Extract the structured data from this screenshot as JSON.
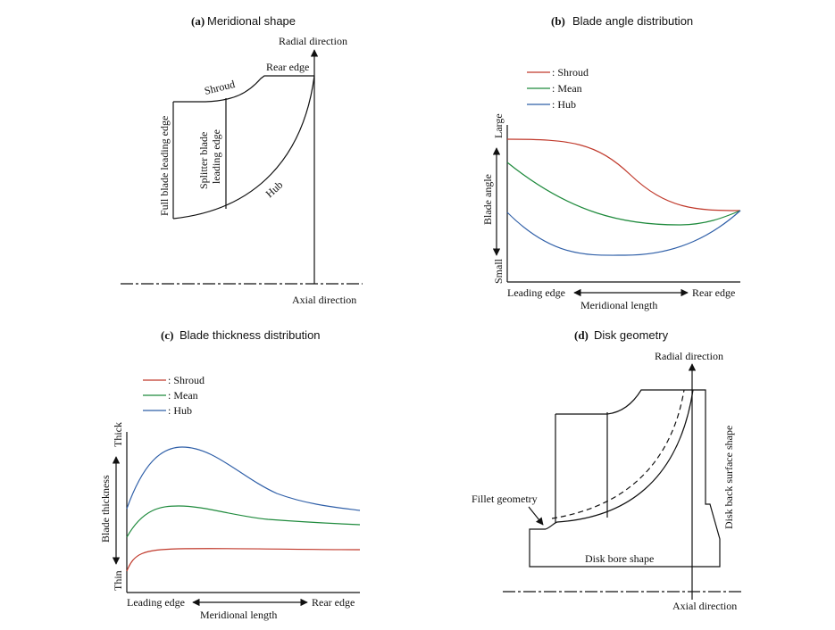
{
  "colors": {
    "shroud": "#c0392b",
    "mean": "#1e8a3c",
    "hub": "#2f5fa8",
    "ink": "#111111"
  },
  "panel_a": {
    "title_letter": "(a)",
    "title_text": "Meridional shape",
    "radial_label": "Radial direction",
    "axial_label": "Axial direction",
    "rear_edge": "Rear edge",
    "shroud": "Shroud",
    "hub": "Hub",
    "full_blade": "Full blade leading edge",
    "splitter_line1": "Splitter blade",
    "splitter_line2": "leading edge"
  },
  "panel_b": {
    "title_letter": "(b)",
    "title_text": "Blade angle distribution",
    "legend": [
      ": Shroud",
      ": Mean",
      ": Hub"
    ],
    "ylabel": "Blade angle",
    "y_high": "Large",
    "y_low": "Small",
    "x_left": "Leading edge",
    "x_right": "Rear edge",
    "xlabel": "Meridional length"
  },
  "panel_c": {
    "title_letter": "(c)",
    "title_text": "Blade thickness distribution",
    "legend": [
      ": Shroud",
      ": Mean",
      ": Hub"
    ],
    "ylabel": "Blade thickness",
    "y_high": "Thick",
    "y_low": "Thin",
    "x_left": "Leading edge",
    "x_right": "Rear edge",
    "xlabel": "Meridional length"
  },
  "panel_d": {
    "title_letter": "(d)",
    "title_text": "Disk geometry",
    "radial_label": "Radial direction",
    "axial_label": "Axial direction",
    "fillet": "Fillet geometry",
    "bore": "Disk bore shape",
    "back": "Disk back surface shape"
  }
}
